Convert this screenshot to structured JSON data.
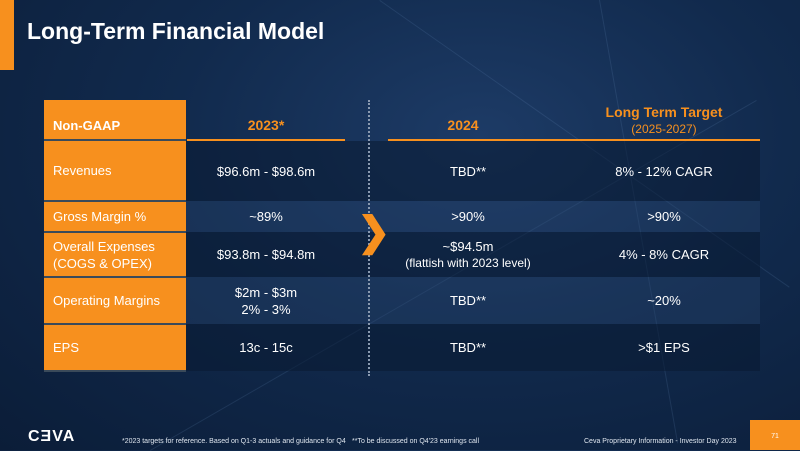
{
  "title": "Long-Term Financial Model",
  "table": {
    "corner": "Non-GAAP",
    "columns": {
      "y2023": "2023*",
      "y2024": "2024",
      "lt": "Long Term Target",
      "lt_sub": "(2025-2027)"
    },
    "rows": [
      {
        "label": "Revenues",
        "y2023": "$96.6m - $98.6m",
        "y2024": "TBD**",
        "lt": "8% - 12% CAGR"
      },
      {
        "label": "Gross Margin %",
        "y2023": "~89%",
        "y2024": ">90%",
        "lt": ">90%"
      },
      {
        "label": "Overall Expenses",
        "label2": "(COGS & OPEX)",
        "y2023": "$93.8m - $94.8m",
        "y2024": "~$94.5m",
        "y2024b": "(flattish with 2023 level)",
        "lt": "4% - 8% CAGR"
      },
      {
        "label": "Operating Margins",
        "y2023": "$2m - $3m",
        "y2023b": "2% - 3%",
        "y2024": "TBD**",
        "lt": "~20%"
      },
      {
        "label": "EPS",
        "y2023": "13c - 15c",
        "y2024": "TBD**",
        "lt": ">$1 EPS"
      }
    ]
  },
  "footer": {
    "logo": "CEVA",
    "note1": "*2023 targets for reference. Based on Q1-3 actuals and guidance for Q4",
    "note2": "**To be discussed on Q4'23 earnings call",
    "proprietary": "Ceva Proprietary Information - Investor Day 2023",
    "page": "71"
  },
  "colors": {
    "accent": "#f7901e",
    "background": "#112a4d"
  }
}
